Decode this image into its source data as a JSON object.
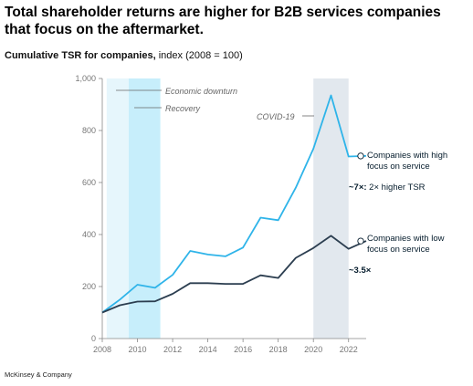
{
  "header": {
    "title": "Total shareholder returns are higher for B2B services companies that focus on the aftermarket.",
    "subtitle_bold": "Cumulative TSR for companies,",
    "subtitle_rest": " index (2008 = 100)"
  },
  "footer": {
    "source": "McKinsey & Company"
  },
  "colors": {
    "high": "#2fb4e9",
    "low": "#2c3e50",
    "downturn": "#e6f6fc",
    "recovery": "#c7eefb",
    "covid": "#e2e8ee",
    "axis": "#888888"
  },
  "chart_data": {
    "type": "line",
    "title": "Cumulative TSR for companies, index (2008 = 100)",
    "xlim": [
      2008,
      2023
    ],
    "ylim": [
      0,
      1000
    ],
    "x_ticks": [
      2008,
      2010,
      2012,
      2014,
      2016,
      2018,
      2020,
      2022
    ],
    "y_ticks": [
      0,
      200,
      400,
      600,
      800,
      1000
    ],
    "y_tick_labels": [
      "0",
      "200",
      "400",
      "600",
      "800",
      "1,000"
    ],
    "x": [
      2008,
      2009,
      2010,
      2011,
      2012,
      2013,
      2014,
      2015,
      2016,
      2017,
      2018,
      2019,
      2020,
      2021,
      2022,
      2023
    ],
    "series": [
      {
        "name": "Companies with high focus on service",
        "values": [
          100,
          150,
          207,
          195,
          245,
          337,
          323,
          316,
          350,
          465,
          455,
          580,
          730,
          935,
          700,
          702
        ]
      },
      {
        "name": "Companies with low focus on service",
        "values": [
          100,
          128,
          142,
          143,
          172,
          213,
          213,
          210,
          210,
          243,
          233,
          310,
          348,
          395,
          345,
          375
        ]
      }
    ],
    "bands": [
      {
        "label": "Economic downturn",
        "from": 2009.5,
        "to": 2011.3
      },
      {
        "label": "Recovery",
        "from": 2009.5,
        "to": 2011.3
      },
      {
        "label": "COVID-19",
        "from": 2020.0,
        "to": 2022.0
      }
    ],
    "end_labels": {
      "high": {
        "line1": "Companies with high",
        "line2": "focus on service",
        "value_bold": "~7×:",
        "value_rest": " 2× higher TSR"
      },
      "low": {
        "line1": "Companies with low",
        "line2": "focus on service",
        "value_bold": "~3.5×"
      }
    }
  }
}
